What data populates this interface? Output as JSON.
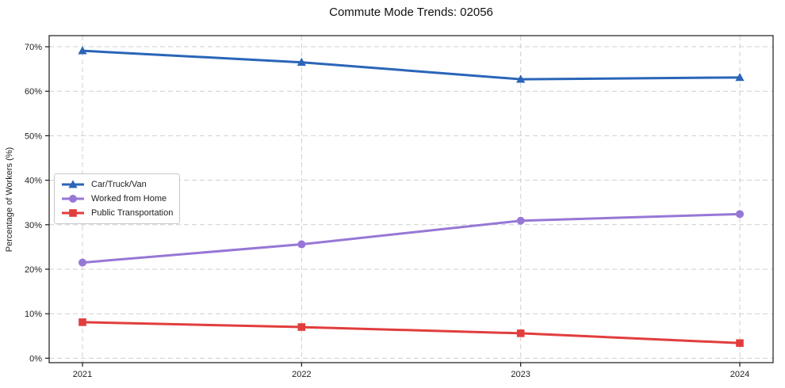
{
  "title": "Commute Mode Trends: 02056",
  "chart_data": {
    "type": "line",
    "title": "Commute Mode Trends: 02056",
    "xlabel": "",
    "ylabel": "Percentage of Workers (%)",
    "categories": [
      "2021",
      "2022",
      "2023",
      "2024"
    ],
    "series": [
      {
        "name": "Car/Truck/Van",
        "color": "#2a65b8",
        "marker": "triangle",
        "values": [
          69.1,
          66.5,
          62.7,
          63.1
        ]
      },
      {
        "name": "Worked from Home",
        "color": "#9777d6",
        "marker": "circle",
        "values": [
          21.5,
          25.6,
          30.9,
          32.4
        ]
      },
      {
        "name": "Public Transportation",
        "color": "#e23d3d",
        "marker": "square",
        "values": [
          8.1,
          7.0,
          5.6,
          3.4
        ]
      }
    ],
    "ylim": [
      -1,
      72.5
    ],
    "yticks": [
      0,
      10,
      20,
      30,
      40,
      50,
      60,
      70
    ],
    "ytick_labels": [
      "0%",
      "10%",
      "20%",
      "30%",
      "40%",
      "50%",
      "60%",
      "70%"
    ],
    "grid": true,
    "grid_style": "dashed",
    "legend_position": "center-left",
    "frame": "full-box"
  }
}
